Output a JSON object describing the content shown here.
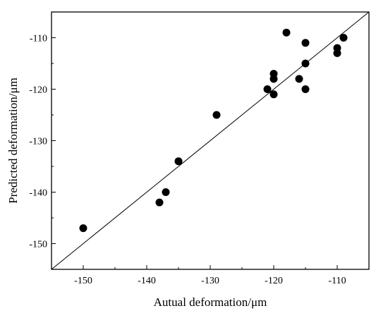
{
  "chart_data": {
    "type": "scatter",
    "xlabel": "Autual deformation/μm",
    "ylabel": "Predicted deformation/μm",
    "xlim": [
      -155,
      -105
    ],
    "ylim": [
      -155,
      -105
    ],
    "xticks": [
      -150,
      -140,
      -130,
      -120,
      -110
    ],
    "yticks": [
      -150,
      -140,
      -130,
      -120,
      -110
    ],
    "x_tick_labels": [
      "-150",
      "-140",
      "-130",
      "-120",
      "-110"
    ],
    "y_tick_labels": [
      "-150",
      "-140",
      "-130",
      "-120",
      "-110"
    ],
    "reference_line": "y = x",
    "grid": false,
    "points": [
      {
        "x": -150,
        "y": -147
      },
      {
        "x": -138,
        "y": -142
      },
      {
        "x": -137,
        "y": -140
      },
      {
        "x": -135,
        "y": -134
      },
      {
        "x": -129,
        "y": -125
      },
      {
        "x": -121,
        "y": -120
      },
      {
        "x": -120,
        "y": -121
      },
      {
        "x": -120,
        "y": -118
      },
      {
        "x": -120,
        "y": -117
      },
      {
        "x": -118,
        "y": -109
      },
      {
        "x": -116,
        "y": -118
      },
      {
        "x": -115,
        "y": -120
      },
      {
        "x": -115,
        "y": -115
      },
      {
        "x": -115,
        "y": -111
      },
      {
        "x": -110,
        "y": -113
      },
      {
        "x": -110,
        "y": -112
      },
      {
        "x": -109,
        "y": -110
      }
    ]
  }
}
